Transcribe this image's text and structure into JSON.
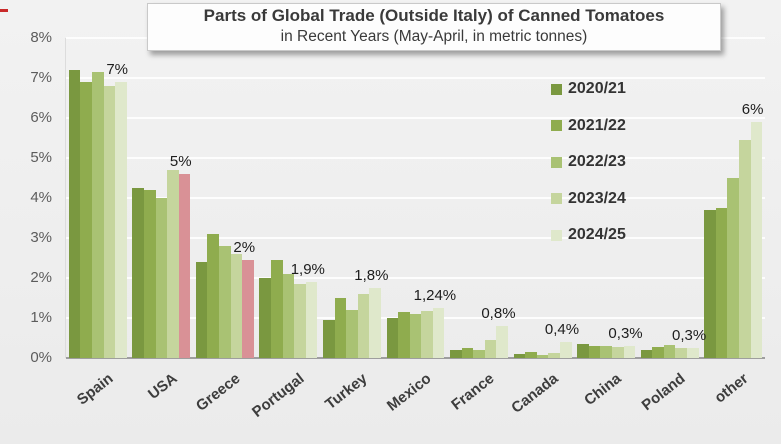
{
  "header": {
    "title": "Parts of Global Trade (Outside Italy) of Canned Tomatoes",
    "subtitle": "in Recent Years (May-April, in metric tonnes)"
  },
  "colors": {
    "background": "#eeeeee",
    "gridline": "#ffffff",
    "highlight_pink": "#d99196",
    "title_text": "#3a3a3a",
    "corner_mark": "#c92a2a"
  },
  "chart_data": {
    "type": "bar",
    "title": "Parts of Global Trade (Outside Italy) of Canned Tomatoes",
    "subtitle": "in Recent Years (May-April, in metric tonnes)",
    "categories": [
      "Spain",
      "USA",
      "Greece",
      "Portugal",
      "Turkey",
      "Mexico",
      "France",
      "Canada",
      "China",
      "Poland",
      "other"
    ],
    "series": [
      {
        "name": "2020/21",
        "color": "#7a9840",
        "values": [
          7.2,
          4.25,
          2.4,
          2.0,
          0.95,
          1.0,
          0.2,
          0.1,
          0.35,
          0.2,
          3.7
        ]
      },
      {
        "name": "2021/22",
        "color": "#8fac4e",
        "values": [
          6.9,
          4.2,
          3.1,
          2.45,
          1.5,
          1.15,
          0.25,
          0.15,
          0.3,
          0.28,
          3.75
        ]
      },
      {
        "name": "2022/23",
        "color": "#a9c273",
        "values": [
          7.15,
          4.0,
          2.8,
          2.1,
          1.2,
          1.1,
          0.2,
          0.07,
          0.3,
          0.33,
          4.5
        ]
      },
      {
        "name": "2023/24",
        "color": "#c5d59d",
        "values": [
          6.8,
          4.7,
          2.6,
          1.85,
          1.6,
          1.18,
          0.45,
          0.12,
          0.28,
          0.25,
          5.45
        ]
      },
      {
        "name": "2024/25",
        "color": "#dfe8cb",
        "values": [
          6.9,
          4.6,
          2.45,
          1.9,
          1.75,
          1.24,
          0.8,
          0.4,
          0.3,
          0.25,
          5.9
        ]
      }
    ],
    "highlight": {
      "series": "2024/25",
      "categories": [
        "USA",
        "Greece"
      ],
      "color": "#d99196"
    },
    "data_labels": [
      "7%",
      "5%",
      "2%",
      "1,9%",
      "1,8%",
      "1,24%",
      "0,8%",
      "0,4%",
      "0,3%",
      "0,3%",
      "6%"
    ],
    "y_ticks": [
      "0%",
      "1%",
      "2%",
      "3%",
      "4%",
      "5%",
      "6%",
      "7%",
      "8%"
    ],
    "ylim": [
      0,
      8
    ],
    "grid": true,
    "legend_position": "inside-top-right",
    "xlabel": "",
    "ylabel": ""
  }
}
